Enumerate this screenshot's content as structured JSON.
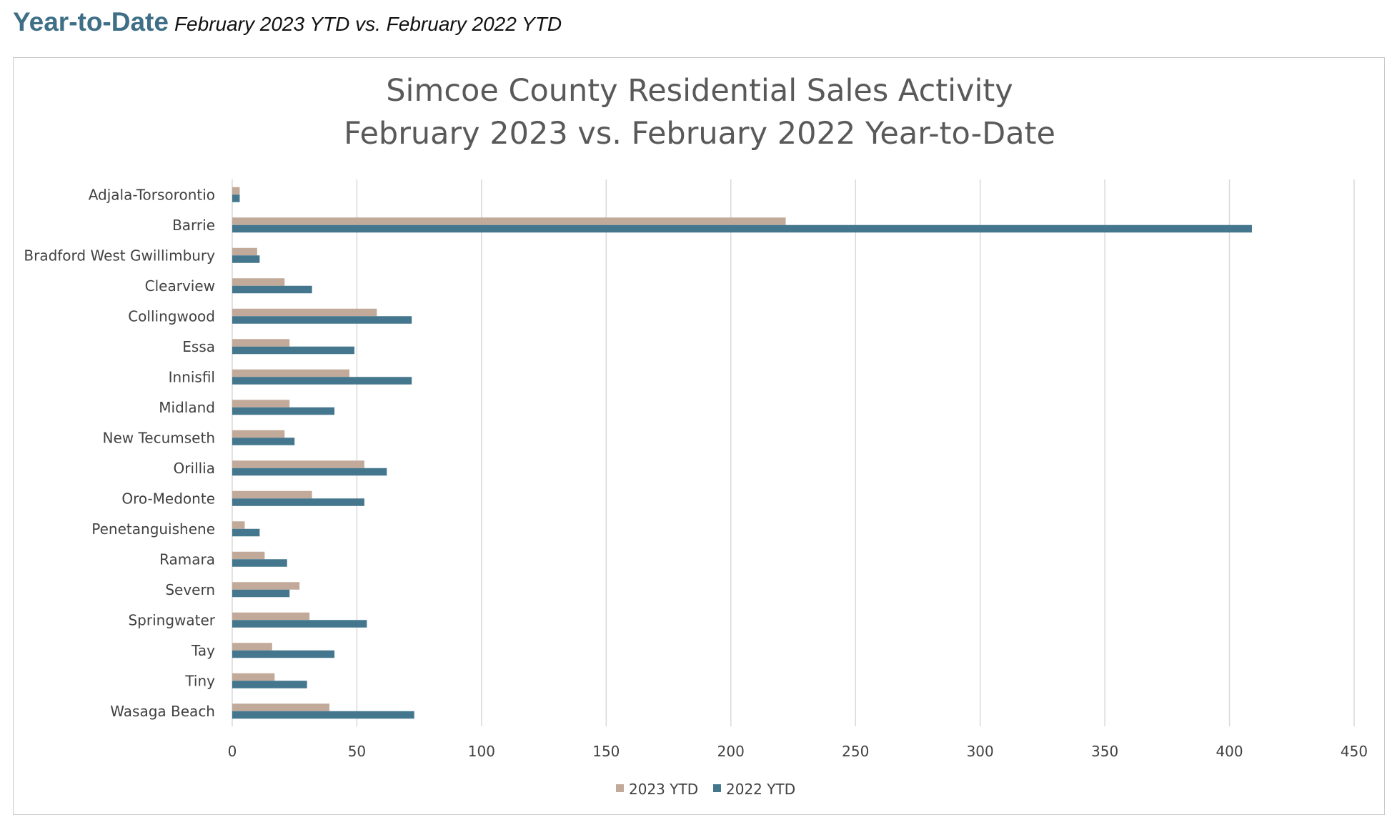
{
  "header": {
    "title": "Year-to-Date",
    "subtitle": "February 2023 YTD vs. February 2022 YTD"
  },
  "colors": {
    "accent": "#3e6f86",
    "series_2023": "#c2aa9a",
    "series_2022": "#44778e",
    "gridline": "#d9d9d9"
  },
  "chart_data": {
    "type": "bar",
    "orientation": "horizontal",
    "title": [
      "Simcoe County Residential Sales Activity",
      "February 2023 vs. February 2022 Year-to-Date"
    ],
    "categories": [
      "Adjala-Torsorontio",
      "Barrie",
      "Bradford West Gwillimbury",
      "Clearview",
      "Collingwood",
      "Essa",
      "Innisfil",
      "Midland",
      "New Tecumseth",
      "Orillia",
      "Oro-Medonte",
      "Penetanguishene",
      "Ramara",
      "Severn",
      "Springwater",
      "Tay",
      "Tiny",
      "Wasaga Beach"
    ],
    "series": [
      {
        "name": "2023 YTD",
        "color": "#c2aa9a",
        "values": [
          3,
          222,
          10,
          21,
          58,
          23,
          47,
          23,
          21,
          53,
          32,
          5,
          13,
          27,
          31,
          16,
          17,
          39
        ]
      },
      {
        "name": "2022 YTD",
        "color": "#44778e",
        "values": [
          3,
          409,
          11,
          32,
          72,
          49,
          72,
          41,
          25,
          62,
          53,
          11,
          22,
          23,
          54,
          41,
          30,
          73
        ]
      }
    ],
    "xlim": [
      0,
      450
    ],
    "xticks": [
      0,
      50,
      100,
      150,
      200,
      250,
      300,
      350,
      400,
      450
    ],
    "grid": true,
    "legend": "bottom"
  }
}
